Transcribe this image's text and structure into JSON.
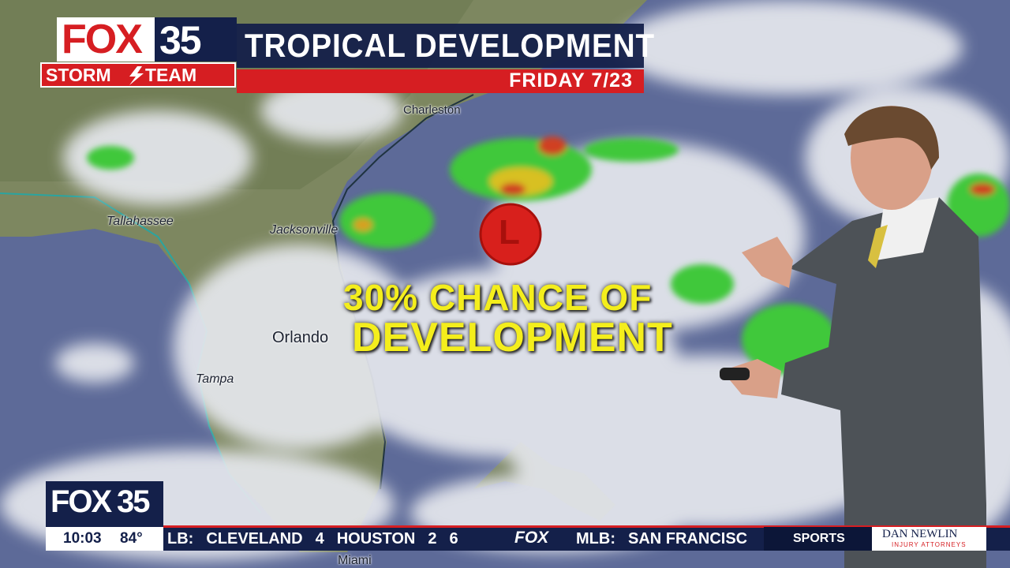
{
  "header": {
    "logo": "FOX",
    "logo_number": "35",
    "brand": [
      "STORM",
      "TEAM"
    ],
    "title": "TROPICAL DEVELOPMENT",
    "date": "FRIDAY 7/23"
  },
  "map": {
    "cities": [
      "Charleston",
      "Tallahassee",
      "Jacksonville",
      "Orlando",
      "Tampa",
      "Miami"
    ],
    "low_marker": "L",
    "annotation": [
      "30% CHANCE OF",
      "DEVELOPMENT"
    ]
  },
  "bug": {
    "logo": "FOX",
    "logo_number": "35",
    "time": "10:03",
    "temperature": "84°"
  },
  "ticker": {
    "items": [
      "LB:",
      "CLEVELAND",
      "4",
      "HOUSTON",
      "2",
      "6"
    ],
    "network": "FOX",
    "next": [
      "MLB:",
      "SAN FRANCISC"
    ],
    "section": "SPORTS",
    "sponsor": "DAN NEWLIN",
    "sponsor_sub": "INJURY ATTORNEYS"
  }
}
